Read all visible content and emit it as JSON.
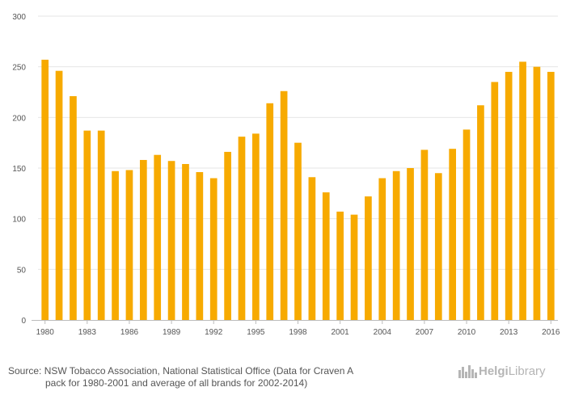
{
  "chart_data": {
    "type": "bar",
    "categories": [
      "1980",
      "1981",
      "1982",
      "1983",
      "1984",
      "1985",
      "1986",
      "1987",
      "1988",
      "1989",
      "1990",
      "1991",
      "1992",
      "1993",
      "1994",
      "1995",
      "1996",
      "1997",
      "1998",
      "1999",
      "2000",
      "2001",
      "2002",
      "2003",
      "2004",
      "2005",
      "2006",
      "2007",
      "2008",
      "2009",
      "2010",
      "2011",
      "2012",
      "2013",
      "2014",
      "2015",
      "2016"
    ],
    "values": [
      257,
      246,
      221,
      187,
      187,
      147,
      148,
      158,
      163,
      157,
      154,
      146,
      140,
      166,
      181,
      184,
      214,
      226,
      175,
      141,
      126,
      107,
      104,
      122,
      140,
      147,
      150,
      168,
      145,
      169,
      188,
      212,
      235,
      245,
      255,
      250,
      245
    ],
    "x_tick_labels": [
      "1980",
      "1983",
      "1986",
      "1989",
      "1992",
      "1995",
      "1998",
      "2001",
      "2004",
      "2007",
      "2010",
      "2013",
      "2016"
    ],
    "y_ticks": [
      0,
      50,
      100,
      150,
      200,
      250,
      300
    ],
    "ylim": [
      0,
      300
    ],
    "bar_color": "#f7aa00",
    "grid": true,
    "title": "",
    "xlabel": "",
    "ylabel": ""
  },
  "footer": {
    "source_line1": "Source: NSW Tobacco Association, National Statistical Office (Data for Craven A",
    "source_line2": "pack for 1980-2001 and average of all brands for 2002-2014)",
    "logo_part1": "Helgi",
    "logo_part2": "Library",
    "logo_icon": "city-skyline-icon"
  }
}
